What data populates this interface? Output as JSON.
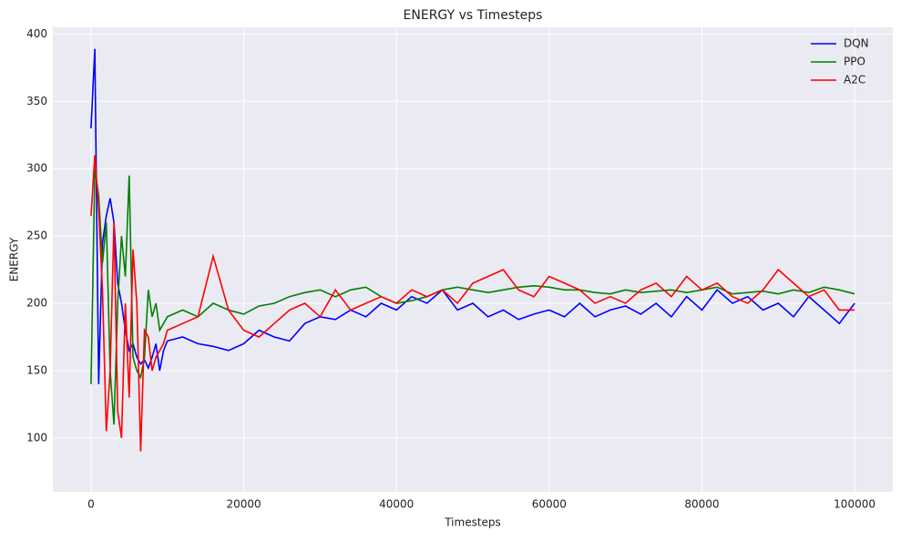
{
  "chart_data": {
    "type": "line",
    "title": "ENERGY vs Timesteps",
    "xlabel": "Timesteps",
    "ylabel": "ENERGY",
    "x": [
      0,
      500,
      1000,
      1500,
      2000,
      2500,
      3000,
      3500,
      4000,
      4500,
      5000,
      5500,
      6000,
      6500,
      7000,
      7500,
      8000,
      8500,
      9000,
      9500,
      10000,
      12000,
      14000,
      16000,
      18000,
      20000,
      22000,
      24000,
      26000,
      28000,
      30000,
      32000,
      34000,
      36000,
      38000,
      40000,
      42000,
      44000,
      46000,
      48000,
      50000,
      52000,
      54000,
      56000,
      58000,
      60000,
      62000,
      64000,
      66000,
      68000,
      70000,
      72000,
      74000,
      76000,
      78000,
      80000,
      82000,
      84000,
      86000,
      88000,
      90000,
      92000,
      94000,
      96000,
      98000,
      100000
    ],
    "series": [
      {
        "name": "DQN",
        "color": "#0000ff",
        "values": [
          330,
          389,
          140,
          245,
          265,
          278,
          260,
          215,
          200,
          180,
          165,
          170,
          160,
          155,
          158,
          152,
          160,
          170,
          150,
          165,
          172,
          175,
          170,
          168,
          165,
          170,
          180,
          175,
          172,
          185,
          190,
          188,
          195,
          190,
          200,
          195,
          205,
          200,
          210,
          195,
          200,
          190,
          195,
          188,
          192,
          195,
          190,
          200,
          190,
          195,
          198,
          192,
          200,
          190,
          205,
          195,
          210,
          200,
          205,
          195,
          200,
          190,
          205,
          195,
          185,
          200
        ]
      },
      {
        "name": "PPO",
        "color": "#008000",
        "values": [
          140,
          300,
          280,
          230,
          260,
          150,
          110,
          200,
          250,
          220,
          295,
          160,
          150,
          145,
          160,
          210,
          190,
          200,
          180,
          185,
          190,
          195,
          190,
          200,
          195,
          192,
          198,
          200,
          205,
          208,
          210,
          205,
          210,
          212,
          205,
          200,
          202,
          205,
          210,
          212,
          210,
          208,
          210,
          212,
          213,
          212,
          210,
          210,
          208,
          207,
          210,
          208,
          209,
          210,
          208,
          210,
          212,
          207,
          208,
          209,
          207,
          210,
          208,
          212,
          210,
          207
        ]
      },
      {
        "name": "A2C",
        "color": "#ff0000",
        "values": [
          265,
          310,
          270,
          210,
          105,
          150,
          260,
          120,
          100,
          200,
          130,
          240,
          200,
          90,
          180,
          175,
          150,
          160,
          165,
          170,
          180,
          185,
          190,
          235,
          195,
          180,
          175,
          185,
          195,
          200,
          190,
          210,
          195,
          200,
          205,
          200,
          210,
          205,
          210,
          200,
          215,
          220,
          225,
          210,
          205,
          220,
          215,
          210,
          200,
          205,
          200,
          210,
          215,
          205,
          220,
          210,
          215,
          205,
          200,
          210,
          225,
          215,
          205,
          210,
          195,
          195
        ]
      }
    ],
    "xlim": [
      -5000,
      105000
    ],
    "ylim": [
      60,
      405
    ],
    "xticks": [
      0,
      20000,
      40000,
      60000,
      80000,
      100000
    ],
    "yticks": [
      100,
      150,
      200,
      250,
      300,
      350,
      400
    ],
    "grid": true,
    "legend": "upper right"
  }
}
